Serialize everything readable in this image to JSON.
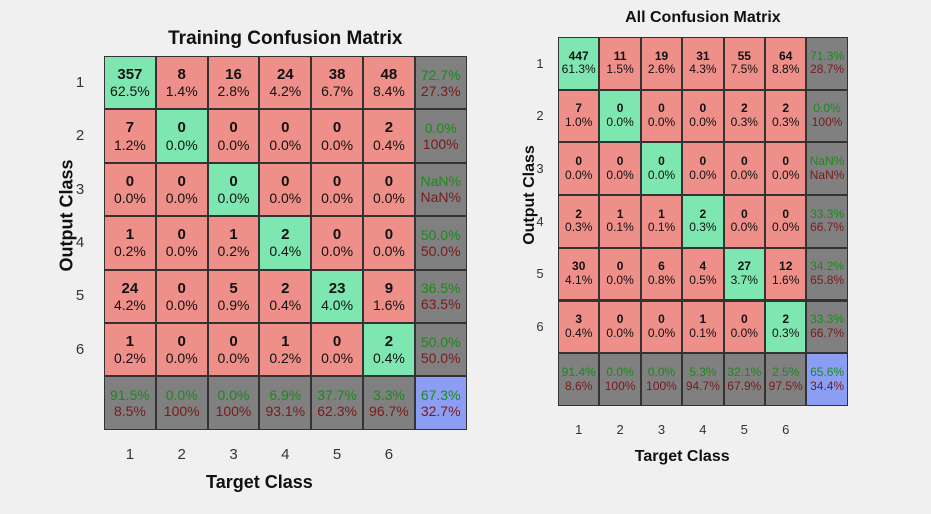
{
  "chart_data": [
    {
      "type": "heatmap",
      "title": "Training Confusion Matrix",
      "xlabel": "Target Class",
      "ylabel": "Output Class",
      "x_ticks": [
        "1",
        "2",
        "3",
        "4",
        "5",
        "6"
      ],
      "y_ticks": [
        "1",
        "2",
        "3",
        "4",
        "5",
        "6"
      ],
      "counts": [
        [
          "357",
          "8",
          "16",
          "24",
          "38",
          "48"
        ],
        [
          "7",
          "0",
          "0",
          "0",
          "0",
          "2"
        ],
        [
          "0",
          "0",
          "0",
          "0",
          "0",
          "0"
        ],
        [
          "1",
          "0",
          "1",
          "2",
          "0",
          "0"
        ],
        [
          "24",
          "0",
          "5",
          "2",
          "23",
          "9"
        ],
        [
          "1",
          "0",
          "0",
          "1",
          "0",
          "2"
        ]
      ],
      "percents": [
        [
          "62.5%",
          "1.4%",
          "2.8%",
          "4.2%",
          "6.7%",
          "8.4%"
        ],
        [
          "1.2%",
          "0.0%",
          "0.0%",
          "0.0%",
          "0.0%",
          "0.4%"
        ],
        [
          "0.0%",
          "0.0%",
          "0.0%",
          "0.0%",
          "0.0%",
          "0.0%"
        ],
        [
          "0.2%",
          "0.0%",
          "0.2%",
          "0.4%",
          "0.0%",
          "0.0%"
        ],
        [
          "4.2%",
          "0.0%",
          "0.9%",
          "0.4%",
          "4.0%",
          "1.6%"
        ],
        [
          "0.2%",
          "0.0%",
          "0.0%",
          "0.2%",
          "0.0%",
          "0.4%"
        ]
      ],
      "row_summary": [
        [
          "72.7%",
          "27.3%"
        ],
        [
          "0.0%",
          "100%"
        ],
        [
          "NaN%",
          "NaN%"
        ],
        [
          "50.0%",
          "50.0%"
        ],
        [
          "36.5%",
          "63.5%"
        ],
        [
          "50.0%",
          "50.0%"
        ]
      ],
      "col_summary": [
        [
          "91.5%",
          "8.5%"
        ],
        [
          "0.0%",
          "100%"
        ],
        [
          "0.0%",
          "100%"
        ],
        [
          "6.9%",
          "93.1%"
        ],
        [
          "37.7%",
          "62.3%"
        ],
        [
          "3.3%",
          "96.7%"
        ]
      ],
      "total": [
        "67.3%",
        "32.7%"
      ],
      "colors": {
        "correct": "#7ee6b0",
        "incorrect": "#ee8f8a",
        "summary": "#808080",
        "overall": "#8c9ef4",
        "good_text": "#1a8a1a",
        "bad_text": "#7a1a1a"
      }
    },
    {
      "type": "heatmap",
      "title": "All Confusion Matrix",
      "xlabel": "Target Class",
      "ylabel": "Output Class",
      "x_ticks": [
        "1",
        "2",
        "3",
        "4",
        "5",
        "6"
      ],
      "y_ticks": [
        "1",
        "2",
        "3",
        "4",
        "5",
        "6"
      ],
      "counts": [
        [
          "447",
          "11",
          "19",
          "31",
          "55",
          "64"
        ],
        [
          "7",
          "0",
          "0",
          "0",
          "2",
          "2"
        ],
        [
          "0",
          "0",
          "0",
          "0",
          "0",
          "0"
        ],
        [
          "2",
          "1",
          "1",
          "2",
          "0",
          "0"
        ],
        [
          "30",
          "0",
          "6",
          "4",
          "27",
          "12"
        ],
        [
          "3",
          "0",
          "0",
          "1",
          "0",
          "2"
        ]
      ],
      "percents": [
        [
          "61.3%",
          "1.5%",
          "2.6%",
          "4.3%",
          "7.5%",
          "8.8%"
        ],
        [
          "1.0%",
          "0.0%",
          "0.0%",
          "0.0%",
          "0.3%",
          "0.3%"
        ],
        [
          "0.0%",
          "0.0%",
          "0.0%",
          "0.0%",
          "0.0%",
          "0.0%"
        ],
        [
          "0.3%",
          "0.1%",
          "0.1%",
          "0.3%",
          "0.0%",
          "0.0%"
        ],
        [
          "4.1%",
          "0.0%",
          "0.8%",
          "0.5%",
          "3.7%",
          "1.6%"
        ],
        [
          "0.4%",
          "0.0%",
          "0.0%",
          "0.1%",
          "0.0%",
          "0.3%"
        ]
      ],
      "row_summary": [
        [
          "71.3%",
          "28.7%"
        ],
        [
          "0.0%",
          "100%"
        ],
        [
          "NaN%",
          "NaN%"
        ],
        [
          "33.3%",
          "66.7%"
        ],
        [
          "34.2%",
          "65.8%"
        ],
        [
          "33.3%",
          "66.7%"
        ]
      ],
      "col_summary": [
        [
          "91.4%",
          "8.6%"
        ],
        [
          "0.0%",
          "100%"
        ],
        [
          "0.0%",
          "100%"
        ],
        [
          "5.3%",
          "94.7%"
        ],
        [
          "32.1%",
          "67.9%"
        ],
        [
          "2.5%",
          "97.5%"
        ]
      ],
      "total": [
        "65.6%",
        "34.4%"
      ],
      "colors": {
        "correct": "#7ee6b0",
        "incorrect": "#ee8f8a",
        "summary": "#808080",
        "overall": "#8c9ef4",
        "good_text": "#1a8a1a",
        "bad_text": "#7a1a1a"
      }
    }
  ]
}
